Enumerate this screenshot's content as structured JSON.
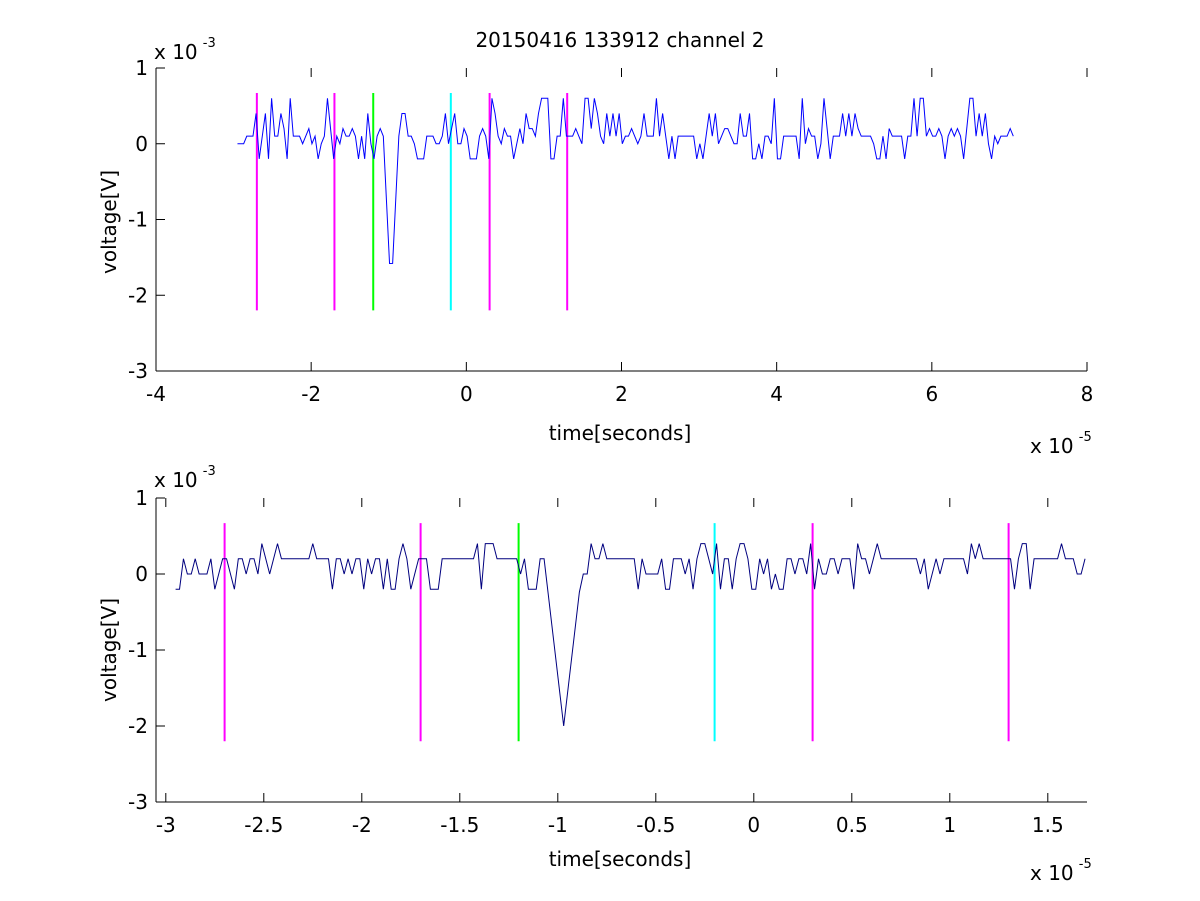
{
  "figure": {
    "title": "20150416 133912 channel 2"
  },
  "chart_data": [
    {
      "type": "line",
      "title": "20150416 133912 channel 2",
      "xlabel": "time[seconds]",
      "ylabel": "voltage[V]",
      "x_scale_label": {
        "base": "x 10",
        "exponent": "-5"
      },
      "y_scale_label": {
        "base": "x 10",
        "exponent": "-3"
      },
      "xlim": [
        -4,
        8
      ],
      "ylim": [
        -3,
        1
      ],
      "x_ticks": [
        -4,
        -2,
        0,
        2,
        4,
        6,
        8
      ],
      "y_ticks": [
        -3,
        -2,
        -1,
        0,
        1
      ],
      "x_tick_labels": [
        "-4",
        "-2",
        "0",
        "2",
        "4",
        "6",
        "8"
      ],
      "y_tick_labels": [
        "-3",
        "-2",
        "-1",
        "0",
        "1"
      ],
      "grid": false,
      "series": [
        {
          "color": "#0000ff",
          "x_range": [
            -2.95,
            7.05
          ],
          "step": 0.04,
          "baseline": 0.1,
          "noise_levels": [
            -0.2,
            0.0,
            0.2,
            0.4,
            0.6
          ],
          "spike": {
            "x": -0.97,
            "min": -2.0
          }
        }
      ],
      "vertical_markers": [
        {
          "x": -2.7,
          "color": "#ff00ff",
          "y_range": [
            -2.2,
            0.67
          ]
        },
        {
          "x": -1.7,
          "color": "#ff00ff",
          "y_range": [
            -2.2,
            0.67
          ]
        },
        {
          "x": -1.2,
          "color": "#00ff00",
          "y_range": [
            -2.2,
            0.67
          ]
        },
        {
          "x": -0.2,
          "color": "#00ffff",
          "y_range": [
            -2.2,
            0.67
          ]
        },
        {
          "x": 0.3,
          "color": "#ff00ff",
          "y_range": [
            -2.2,
            0.67
          ]
        },
        {
          "x": 1.3,
          "color": "#ff00ff",
          "y_range": [
            -2.2,
            0.67
          ]
        }
      ]
    },
    {
      "type": "line",
      "title": "",
      "xlabel": "time[seconds]",
      "ylabel": "voltage[V]",
      "x_scale_label": {
        "base": "x 10",
        "exponent": "-5"
      },
      "y_scale_label": {
        "base": "x 10",
        "exponent": "-3"
      },
      "xlim": [
        -3.05,
        1.7
      ],
      "ylim": [
        -3,
        1
      ],
      "x_ticks": [
        -3,
        -2.5,
        -2,
        -1.5,
        -1,
        -0.5,
        0,
        0.5,
        1,
        1.5
      ],
      "y_ticks": [
        -3,
        -2,
        -1,
        0,
        1
      ],
      "x_tick_labels": [
        "-3",
        "-2.5",
        "-2",
        "-1.5",
        "-1",
        "-0.5",
        "0",
        "0.5",
        "1",
        "1.5"
      ],
      "y_tick_labels": [
        "-3",
        "-2",
        "-1",
        "0",
        "1"
      ],
      "grid": false,
      "series": [
        {
          "color": "#00007f",
          "x_range": [
            -2.95,
            1.7
          ],
          "step": 0.02,
          "baseline": 0.2,
          "noise_levels": [
            -0.2,
            0.0,
            0.2,
            0.4
          ],
          "spike": {
            "x": -0.97,
            "min": -2.0
          }
        }
      ],
      "vertical_markers": [
        {
          "x": -2.7,
          "color": "#ff00ff",
          "y_range": [
            -2.2,
            0.67
          ]
        },
        {
          "x": -1.7,
          "color": "#ff00ff",
          "y_range": [
            -2.2,
            0.67
          ]
        },
        {
          "x": -1.2,
          "color": "#00ff00",
          "y_range": [
            -2.2,
            0.67
          ]
        },
        {
          "x": -0.2,
          "color": "#00ffff",
          "y_range": [
            -2.2,
            0.67
          ]
        },
        {
          "x": 0.3,
          "color": "#ff00ff",
          "y_range": [
            -2.2,
            0.67
          ]
        },
        {
          "x": 1.3,
          "color": "#ff00ff",
          "y_range": [
            -2.2,
            0.67
          ]
        }
      ]
    }
  ]
}
